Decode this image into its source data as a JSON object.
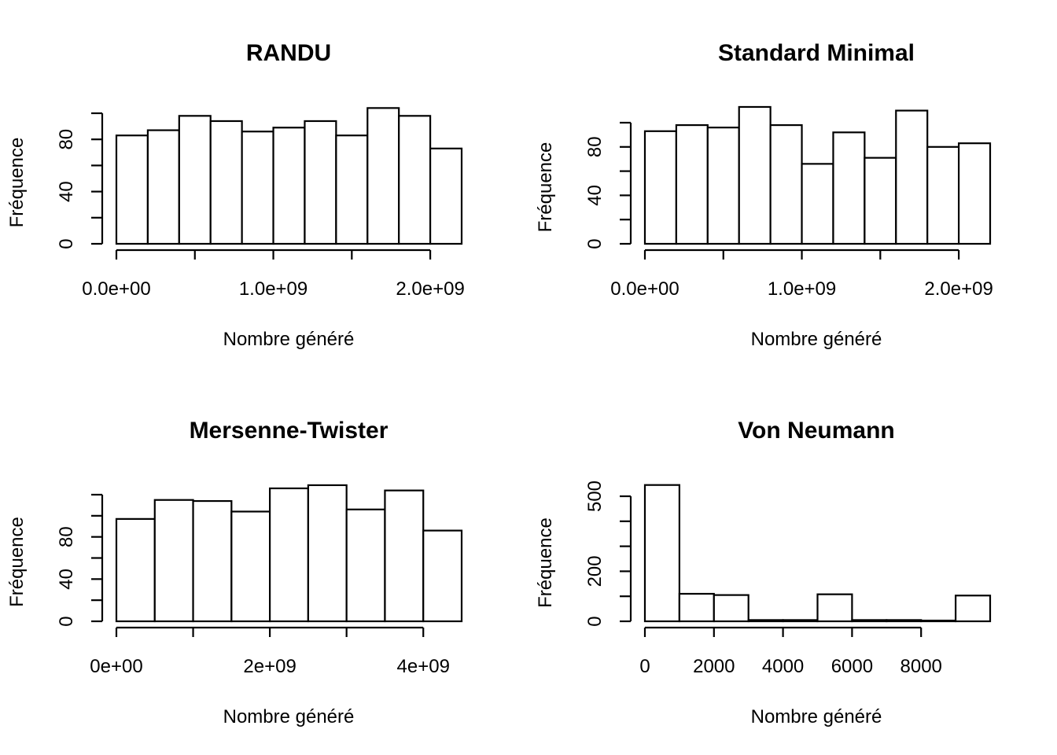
{
  "chart_data": [
    {
      "type": "bar",
      "title": "RANDU",
      "xlabel": "Nombre généré",
      "ylabel": "Fréquence",
      "xlim": [
        0,
        2200000000
      ],
      "ylim": [
        0,
        100
      ],
      "bin_edges": [
        0,
        200000000,
        400000000,
        600000000,
        800000000,
        1000000000,
        1200000000,
        1400000000,
        1600000000,
        1800000000,
        2000000000,
        2200000000
      ],
      "values": [
        83,
        87,
        98,
        94,
        86,
        89,
        94,
        83,
        104,
        98,
        73
      ],
      "x_ticks": [
        0,
        500000000,
        1000000000,
        1500000000,
        2000000000
      ],
      "x_tick_labels": [
        "0.0e+00",
        "",
        "1.0e+09",
        "",
        "2.0e+09"
      ],
      "y_ticks": [
        0,
        20,
        40,
        60,
        80,
        100
      ],
      "y_tick_labels": [
        "0",
        "",
        "40",
        "",
        "80",
        ""
      ]
    },
    {
      "type": "bar",
      "title": "Standard Minimal",
      "xlabel": "Nombre généré",
      "ylabel": "Fréquence",
      "xlim": [
        0,
        2200000000
      ],
      "ylim": [
        0,
        100
      ],
      "bin_edges": [
        0,
        200000000,
        400000000,
        600000000,
        800000000,
        1000000000,
        1200000000,
        1400000000,
        1600000000,
        1800000000,
        2000000000,
        2200000000
      ],
      "values": [
        93,
        98,
        96,
        113,
        98,
        66,
        92,
        71,
        110,
        80,
        83
      ],
      "x_ticks": [
        0,
        500000000,
        1000000000,
        1500000000,
        2000000000
      ],
      "x_tick_labels": [
        "0.0e+00",
        "",
        "1.0e+09",
        "",
        "2.0e+09"
      ],
      "y_ticks": [
        0,
        20,
        40,
        60,
        80,
        100
      ],
      "y_tick_labels": [
        "0",
        "",
        "40",
        "",
        "80",
        ""
      ]
    },
    {
      "type": "bar",
      "title": "Mersenne-Twister",
      "xlabel": "Nombre généré",
      "ylabel": "Fréquence",
      "xlim": [
        0,
        4500000000
      ],
      "ylim": [
        0,
        120
      ],
      "bin_edges": [
        0,
        500000000,
        1000000000,
        1500000000,
        2000000000,
        2500000000,
        3000000000,
        3500000000,
        4000000000,
        4500000000
      ],
      "values": [
        97,
        115,
        114,
        104,
        126,
        129,
        106,
        124,
        86
      ],
      "x_ticks": [
        0,
        1000000000,
        2000000000,
        3000000000,
        4000000000
      ],
      "x_tick_labels": [
        "0e+00",
        "",
        "2e+09",
        "",
        "4e+09"
      ],
      "y_ticks": [
        0,
        20,
        40,
        60,
        80,
        100,
        120
      ],
      "y_tick_labels": [
        "0",
        "",
        "40",
        "",
        "80",
        "",
        ""
      ]
    },
    {
      "type": "bar",
      "title": "Von Neumann",
      "xlabel": "Nombre généré",
      "ylabel": "Fréquence",
      "xlim": [
        0,
        10000
      ],
      "ylim": [
        0,
        500
      ],
      "bin_edges": [
        0,
        1000,
        2000,
        3000,
        4000,
        5000,
        6000,
        7000,
        8000,
        9000,
        10000
      ],
      "values": [
        545,
        110,
        105,
        5,
        5,
        108,
        5,
        5,
        3,
        103
      ],
      "x_ticks": [
        0,
        2000,
        4000,
        6000,
        8000
      ],
      "x_tick_labels": [
        "0",
        "2000",
        "4000",
        "6000",
        "8000"
      ],
      "y_ticks": [
        0,
        100,
        200,
        300,
        400,
        500
      ],
      "y_tick_labels": [
        "0",
        "",
        "200",
        "",
        "",
        "500"
      ]
    }
  ]
}
